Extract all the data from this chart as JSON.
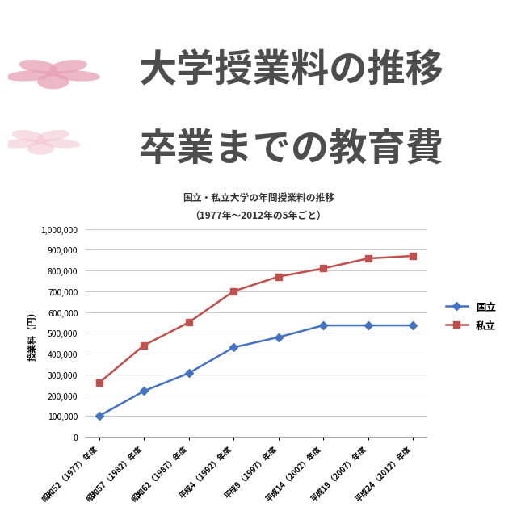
{
  "title_line1": "大学授業料の推移",
  "title_line2": "卒業までの教育費",
  "subtitle_line1": "国立・私立大学の年間授業料の推移",
  "subtitle_line2": "（1977年～2012年の5年ごと）",
  "ylabel": "授業料（円）",
  "x_labels": [
    "昭和52（1977）年度",
    "昭和57（1982）年度",
    "昭和62（1987）年度",
    "平成4（1992）年度",
    "平成9（1997）年度",
    "平成14（2002）年度",
    "平成19（2007）年度",
    "平成24（2012）年度"
  ],
  "kokuritsu": [
    100000,
    220000,
    306000,
    430000,
    478800,
    535800,
    535800,
    535800
  ],
  "shiritsu": [
    260000,
    440000,
    550000,
    700000,
    770000,
    810000,
    858000,
    870000
  ],
  "kokuritsu_color": "#4472C4",
  "shiritsu_color": "#C0504D",
  "bg_color": "#FFFFFF",
  "title_color": "#4D4D4D",
  "ylim": [
    0,
    1000000
  ],
  "yticks": [
    0,
    100000,
    200000,
    300000,
    400000,
    500000,
    600000,
    700000,
    800000,
    900000,
    1000000
  ],
  "legend_kokuritsu": "国立",
  "legend_shiritsu": "私立",
  "sakura_color_light": "#F2C4CE",
  "sakura_color_dark": "#E8A0B4",
  "top_bar_color": "#9B2748",
  "grid_color": "#CCCCCC",
  "subtitle_color": "#333333"
}
